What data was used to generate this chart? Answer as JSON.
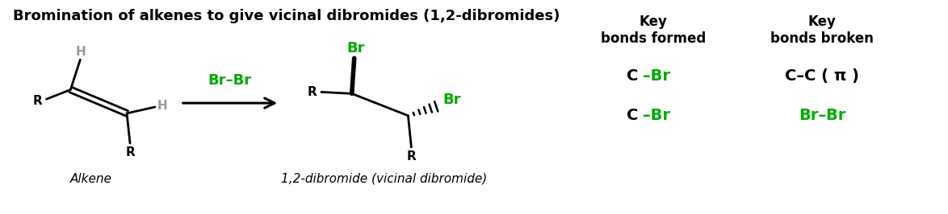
{
  "title": "Bromination of alkenes to give vicinal dibromides (1,2-dibromides)",
  "title_fontsize": 13,
  "title_fontweight": "bold",
  "bg_color": "#ffffff",
  "green_color": "#00aa00",
  "black_color": "#000000",
  "gray_color": "#999999",
  "alkene_label": "Alkene",
  "product_label": "1,2-dibromide (vicinal dibromide)",
  "reagent": "Br–Br",
  "key_bonds_formed_header": "Key\nbonds formed",
  "key_bonds_broken_header": "Key\nbonds broken",
  "figsize": [
    11.74,
    2.66
  ],
  "dpi": 100
}
